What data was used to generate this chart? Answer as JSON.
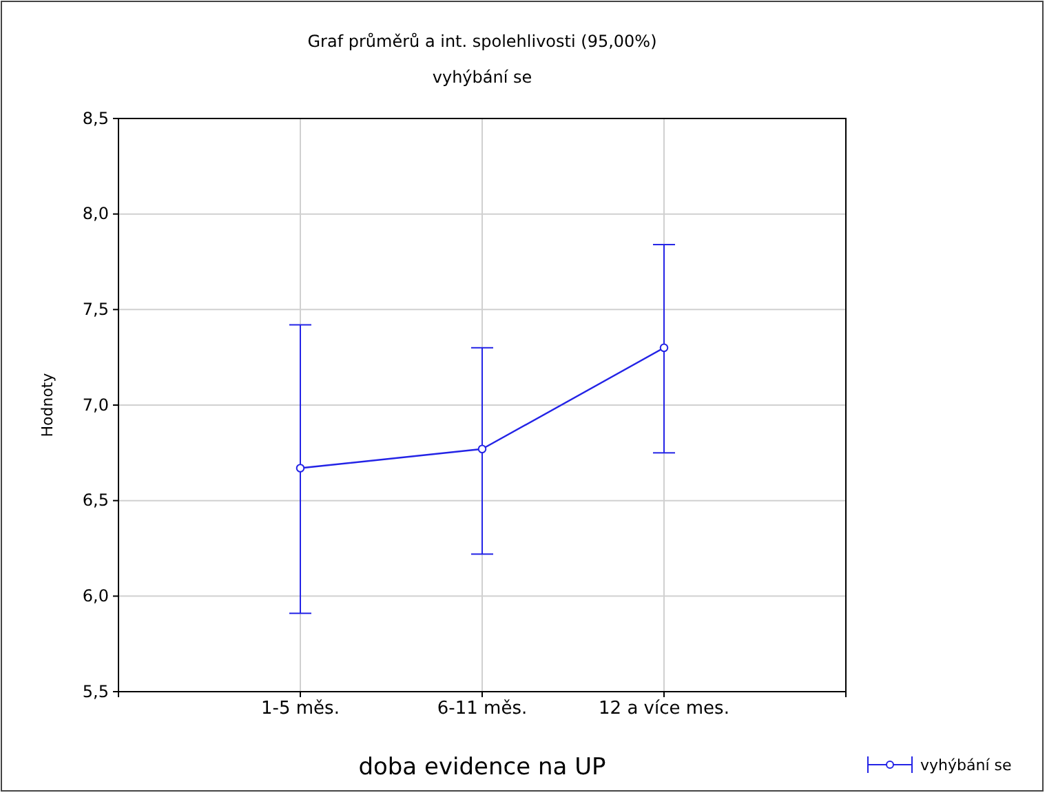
{
  "chart_data": {
    "type": "line",
    "title": "Graf průměrů a int. spolehlivosti (95,00%)",
    "subtitle": "vyhýbání se",
    "xlabel": "doba evidence na UP",
    "ylabel": "Hodnoty",
    "categories": [
      "1-5 měs.",
      "6-11 měs.",
      "12 a více mes."
    ],
    "series": [
      {
        "name": "vyhýbání se",
        "color": "#2323e6",
        "values": [
          6.67,
          6.77,
          7.3
        ],
        "errors": [
          [
            5.91,
            7.42
          ],
          [
            6.22,
            7.3
          ],
          [
            6.75,
            7.84
          ]
        ]
      }
    ],
    "ylim": [
      5.5,
      8.5
    ],
    "yticks": [
      {
        "value": 5.5,
        "label": "5,5"
      },
      {
        "value": 6,
        "label": "6,0"
      },
      {
        "value": 6.5,
        "label": "6,5"
      },
      {
        "value": 7,
        "label": "7,0"
      },
      {
        "value": 7.5,
        "label": "7,5"
      },
      {
        "value": 8,
        "label": "8,0"
      },
      {
        "value": 8.5,
        "label": "8,5"
      }
    ],
    "grid": true,
    "legend": "bottom right",
    "marker": "circle",
    "line_style": "solid"
  }
}
